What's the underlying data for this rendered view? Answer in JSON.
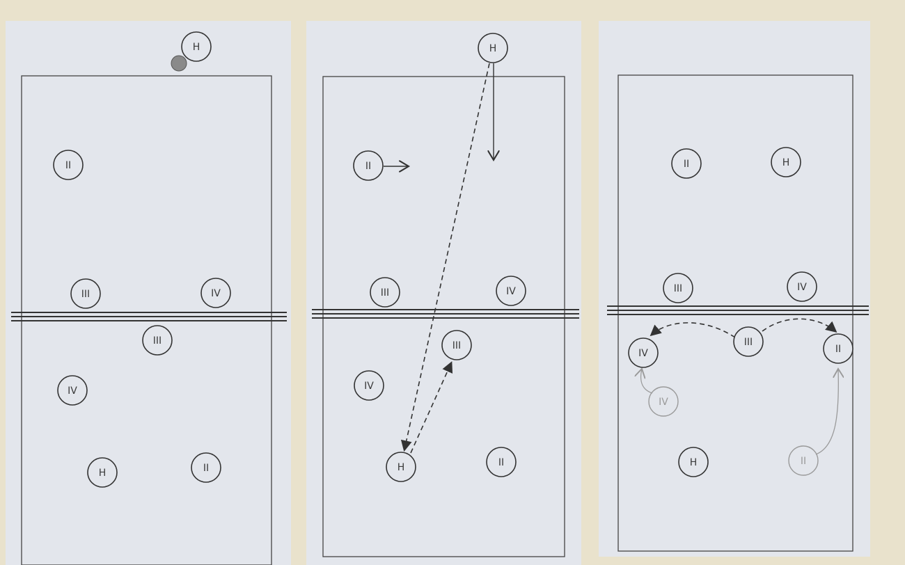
{
  "colors": {
    "page_background": "#e9e2cc",
    "panel_background": "#e3e6ec",
    "line": "#333333",
    "ghost_line": "#9a9a9a",
    "ball": "#8a8a8a"
  },
  "panels": [
    {
      "id": "panel-1",
      "players": [
        {
          "label": "H",
          "role": "server",
          "ghost": false
        },
        {
          "label": "II",
          "ghost": false
        },
        {
          "label": "III",
          "ghost": false
        },
        {
          "label": "IV",
          "ghost": false
        },
        {
          "label": "III",
          "ghost": false
        },
        {
          "label": "IV",
          "ghost": false
        },
        {
          "label": "H",
          "ghost": false
        },
        {
          "label": "II",
          "ghost": false
        }
      ],
      "ball": true
    },
    {
      "id": "panel-2",
      "players": [
        {
          "label": "H",
          "role": "server",
          "ghost": false
        },
        {
          "label": "II",
          "ghost": false
        },
        {
          "label": "III",
          "ghost": false
        },
        {
          "label": "IV",
          "ghost": false
        },
        {
          "label": "III",
          "ghost": false
        },
        {
          "label": "IV",
          "ghost": false
        },
        {
          "label": "H",
          "ghost": false
        },
        {
          "label": "II",
          "ghost": false
        }
      ],
      "arrows": [
        "serve-path",
        "server-run",
        "ii-move",
        "pass-to-setter"
      ]
    },
    {
      "id": "panel-3",
      "players": [
        {
          "label": "II",
          "ghost": false
        },
        {
          "label": "H",
          "ghost": false
        },
        {
          "label": "III",
          "ghost": false
        },
        {
          "label": "IV",
          "ghost": false
        },
        {
          "label": "IV",
          "ghost": false
        },
        {
          "label": "III",
          "ghost": false
        },
        {
          "label": "II",
          "ghost": false
        },
        {
          "label": "IV",
          "ghost": true
        },
        {
          "label": "H",
          "ghost": false
        },
        {
          "label": "II",
          "ghost": true
        }
      ],
      "arrows": [
        "set-left",
        "set-right",
        "iv-approach",
        "ii-approach"
      ]
    }
  ]
}
